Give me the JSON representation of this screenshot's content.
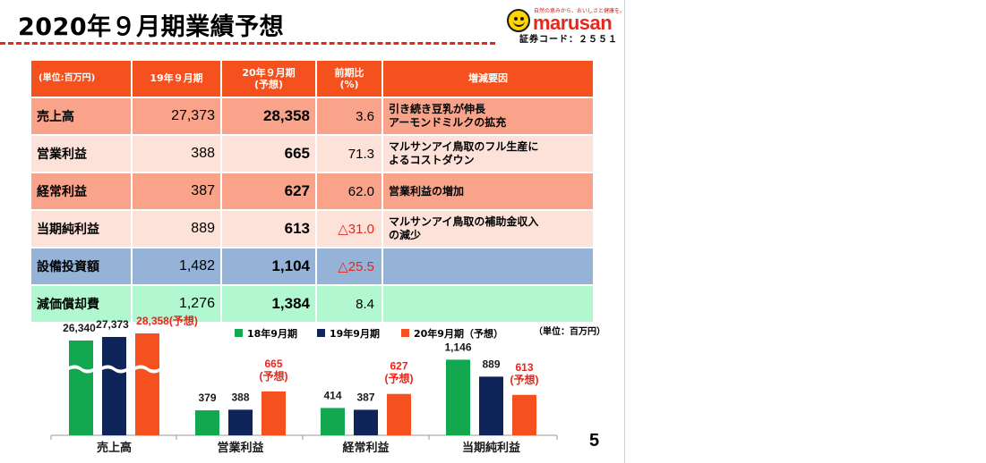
{
  "header": {
    "title": "2020年９月期業績予想",
    "logo_word": "marusan",
    "logo_tagline": "自然の恵みから、おいしさと健康を。",
    "stock_code": "証券コード：２５５１"
  },
  "table": {
    "headers": [
      "(単位:百万円)",
      "19年９月期",
      "20年９月期\n(予想)",
      "前期比\n(%)",
      "増減要因"
    ],
    "rows": [
      {
        "label": "売上高",
        "prev": "27,373",
        "forecast": "28,358",
        "change": "3.6",
        "factor": "引き続き豆乳が伸長\nアーモンドミルクの拡充"
      },
      {
        "label": "営業利益",
        "prev": "388",
        "forecast": "665",
        "change": "71.3",
        "factor": "マルサンアイ鳥取のフル生産に\nよるコストダウン"
      },
      {
        "label": "経常利益",
        "prev": "387",
        "forecast": "627",
        "change": "62.0",
        "factor": "営業利益の増加"
      },
      {
        "label": "当期純利益",
        "prev": "889",
        "forecast": "613",
        "change": "△31.0",
        "factor": "マルサンアイ鳥取の補助金収入\nの減少"
      },
      {
        "label": "設備投資額",
        "prev": "1,482",
        "forecast": "1,104",
        "change": "△25.5",
        "factor": ""
      },
      {
        "label": "減価償却費",
        "prev": "1,276",
        "forecast": "1,384",
        "change": "8.4",
        "factor": ""
      }
    ]
  },
  "chart_data": {
    "type": "bar",
    "categories": [
      "売上高",
      "営業利益",
      "経常利益",
      "当期純利益"
    ],
    "series": [
      {
        "name": "18年9月期",
        "color": "#12a84f",
        "values": [
          26340,
          379,
          414,
          1146
        ],
        "labels": [
          "26,340",
          "379",
          "414",
          "1,146"
        ]
      },
      {
        "name": "19年9月期",
        "color": "#0f2559",
        "values": [
          27373,
          388,
          387,
          889
        ],
        "labels": [
          "27,373",
          "388",
          "387",
          "889"
        ]
      },
      {
        "name": "20年9月期（予想）",
        "color": "#f4511e",
        "values": [
          28358,
          665,
          627,
          613
        ],
        "labels": [
          "28,358(予想)",
          "665",
          "627",
          "613"
        ]
      }
    ],
    "forecast_tag": "(予想)",
    "unit_note": "（単位：百万円）",
    "axis_break": "売上高"
  },
  "page_number": "5"
}
